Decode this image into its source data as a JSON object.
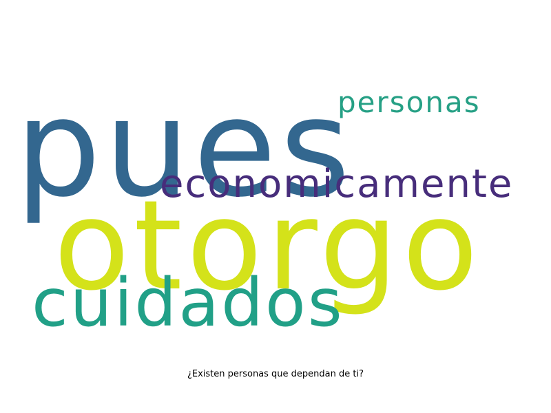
{
  "words": [
    {
      "text": "pues",
      "color": "#33678f"
    },
    {
      "text": "otorgo",
      "color": "#d4e21a"
    },
    {
      "text": "economicamente",
      "color": "#472d7b"
    },
    {
      "text": "personas",
      "color": "#26a085"
    },
    {
      "text": "cuidados",
      "color": "#21a087"
    }
  ],
  "caption": "¿Existen personas que dependan de ti?"
}
